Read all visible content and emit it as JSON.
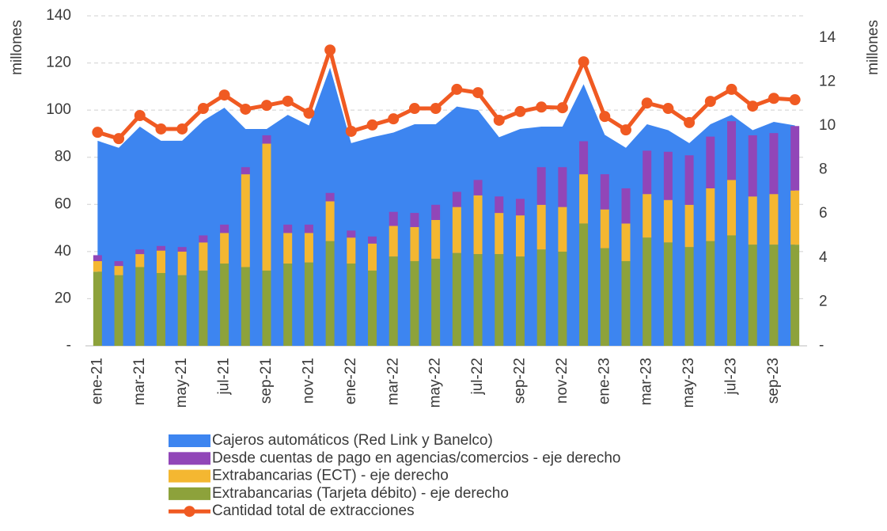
{
  "chart_data": {
    "type": "combo",
    "y_label": "millones",
    "y2_label": "millones",
    "categories": [
      "ene-21",
      null,
      "mar-21",
      null,
      "may-21",
      null,
      "jul-21",
      null,
      "sep-21",
      null,
      "nov-21",
      null,
      "ene-22",
      null,
      "mar-22",
      null,
      "may-22",
      null,
      "jul-22",
      null,
      "sep-22",
      null,
      "nov-22",
      null,
      "ene-23",
      null,
      "mar-23",
      null,
      "may-23",
      null,
      "jul-23",
      null,
      "sep-23",
      null
    ],
    "ylim": [
      0,
      140
    ],
    "yticks": [
      {
        "value": 0,
        "label": "-"
      },
      20,
      40,
      60,
      80,
      100,
      120,
      140
    ],
    "y2lim": [
      0,
      15
    ],
    "y2ticks": [
      {
        "value": 0,
        "label": "-"
      },
      2,
      4,
      6,
      8,
      10,
      12,
      14
    ],
    "grid": true,
    "stacked": true,
    "series": [
      {
        "name": "Cajeros automáticos (Red Link y Banelco)",
        "type": "area",
        "color": "#3d85f0",
        "values": [
          87,
          84,
          93,
          87,
          87,
          95.5,
          101,
          92,
          92,
          98,
          93.5,
          118,
          86,
          88.5,
          90.5,
          94,
          94,
          101.5,
          100,
          88.5,
          92,
          93,
          93,
          111,
          89.5,
          84,
          94,
          91.5,
          86,
          94,
          98,
          91.5,
          95,
          93.5
        ]
      },
      {
        "name": "Desde cuentas de pago en agencias/comercios - eje derecho",
        "type": "bar",
        "axis": "y2",
        "color": "#9146b8",
        "values": [
          0.27,
          0.22,
          0.21,
          0.21,
          0.21,
          0.32,
          0.38,
          0.32,
          0.38,
          0.38,
          0.38,
          0.38,
          0.32,
          0.32,
          0.64,
          0.64,
          0.69,
          0.69,
          0.7,
          0.75,
          0.75,
          1.71,
          1.81,
          1.5,
          1.6,
          1.6,
          1.97,
          2.19,
          2.25,
          2.35,
          2.67,
          2.78,
          2.77,
          2.93
        ]
      },
      {
        "name": "Extrabancarias (ECT) - eje derecho",
        "type": "bar",
        "axis": "y2",
        "color": "#f4b731",
        "values": [
          0.48,
          0.42,
          0.59,
          1.02,
          1.07,
          1.28,
          1.39,
          4.22,
          5.77,
          1.39,
          1.34,
          1.81,
          1.18,
          1.23,
          1.39,
          1.55,
          1.76,
          2.09,
          2.67,
          1.87,
          1.87,
          2.03,
          2.03,
          2.24,
          1.76,
          1.71,
          1.98,
          1.93,
          1.92,
          2.4,
          2.52,
          2.19,
          2.3,
          2.46
        ]
      },
      {
        "name": "Extrabancarias (Tarjeta débito) - eje derecho",
        "type": "bar",
        "axis": "y2",
        "color": "#8da23b",
        "values": [
          3.37,
          3.21,
          3.58,
          3.31,
          3.21,
          3.42,
          3.74,
          3.58,
          3.42,
          3.74,
          3.79,
          4.76,
          3.74,
          3.42,
          4.06,
          3.85,
          3.96,
          4.22,
          4.17,
          4.17,
          4.06,
          4.38,
          4.28,
          5.56,
          4.44,
          3.85,
          4.92,
          4.7,
          4.49,
          4.76,
          5.02,
          4.6,
          4.6,
          4.6
        ]
      },
      {
        "name": "Cantidad total de extracciones",
        "type": "line",
        "color": "#f05a22",
        "values": [
          90.6,
          87.9,
          97.7,
          92,
          92,
          100.7,
          106.4,
          100.4,
          102,
          103.8,
          98.7,
          125.5,
          91,
          93.7,
          96.3,
          100.7,
          100.7,
          108.8,
          107.4,
          95.7,
          99.4,
          101.3,
          101,
          120.5,
          97.3,
          91.6,
          103,
          100.7,
          94.7,
          103.7,
          108.8,
          101.7,
          105,
          104.4
        ]
      }
    ]
  }
}
